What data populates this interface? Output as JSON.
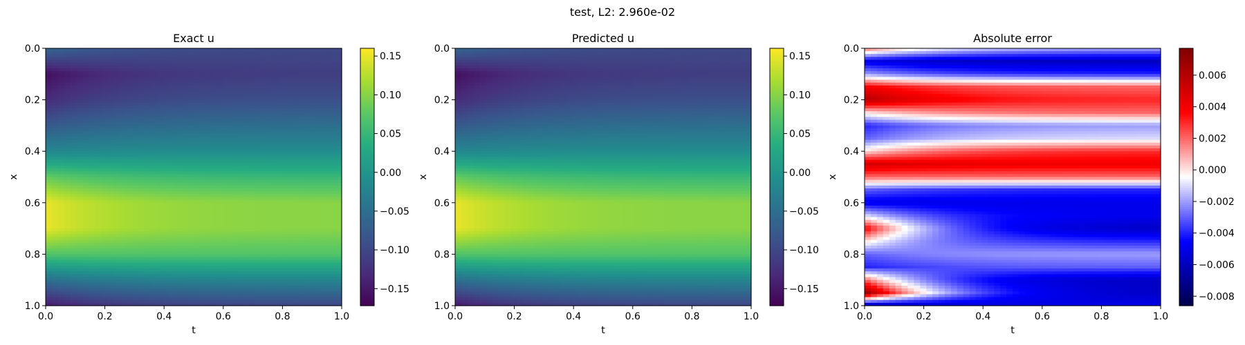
{
  "suptitle": "test, L2: 2.960e-02",
  "chart_data": [
    {
      "type": "heatmap",
      "title": "Exact u",
      "xlabel": "t",
      "ylabel": "x",
      "xlim": [
        0.0,
        1.0
      ],
      "ylim": [
        0.0,
        1.0
      ],
      "y_inverted": true,
      "x_ticks": [
        "0.0",
        "0.2",
        "0.4",
        "0.6",
        "0.8",
        "1.0"
      ],
      "y_ticks": [
        "0.0",
        "0.2",
        "0.4",
        "0.6",
        "0.8",
        "1.0"
      ],
      "colormap": "viridis",
      "colorbar": {
        "min": -0.172,
        "max": 0.16,
        "ticks": [
          0.15,
          0.1,
          0.05,
          0.0,
          -0.05,
          -0.1,
          -0.15
        ],
        "tick_labels": [
          "0.15",
          "0.10",
          "0.05",
          "0.00",
          "−0.05",
          "−0.10",
          "−0.15"
        ]
      },
      "field": {
        "x": [
          0.0,
          0.1,
          0.2,
          0.3,
          0.4,
          0.5,
          0.6,
          0.7,
          0.8,
          0.9,
          1.0
        ],
        "u_at_t0": [
          -0.06,
          -0.16,
          -0.13,
          -0.08,
          -0.02,
          0.08,
          0.15,
          0.15,
          0.07,
          -0.05,
          -0.15
        ],
        "u_at_t1": [
          -0.1,
          -0.11,
          -0.09,
          -0.05,
          -0.01,
          0.05,
          0.1,
          0.1,
          0.07,
          -0.02,
          -0.1
        ]
      }
    },
    {
      "type": "heatmap",
      "title": "Predicted u",
      "xlabel": "t",
      "ylabel": "x",
      "xlim": [
        0.0,
        1.0
      ],
      "ylim": [
        0.0,
        1.0
      ],
      "y_inverted": true,
      "x_ticks": [
        "0.0",
        "0.2",
        "0.4",
        "0.6",
        "0.8",
        "1.0"
      ],
      "y_ticks": [
        "0.0",
        "0.2",
        "0.4",
        "0.6",
        "0.8",
        "1.0"
      ],
      "colormap": "viridis",
      "colorbar": {
        "min": -0.172,
        "max": 0.16,
        "ticks": [
          0.15,
          0.1,
          0.05,
          0.0,
          -0.05,
          -0.1,
          -0.15
        ],
        "tick_labels": [
          "0.15",
          "0.10",
          "0.05",
          "0.00",
          "−0.05",
          "−0.10",
          "−0.15"
        ]
      },
      "field": {
        "x": [
          0.0,
          0.1,
          0.2,
          0.3,
          0.4,
          0.5,
          0.6,
          0.7,
          0.8,
          0.9,
          1.0
        ],
        "u_at_t0": [
          -0.06,
          -0.16,
          -0.13,
          -0.08,
          -0.02,
          0.08,
          0.15,
          0.15,
          0.07,
          -0.05,
          -0.15
        ],
        "u_at_t1": [
          -0.1,
          -0.11,
          -0.09,
          -0.05,
          -0.01,
          0.05,
          0.1,
          0.1,
          0.07,
          -0.02,
          -0.1
        ]
      }
    },
    {
      "type": "heatmap",
      "title": "Absolute error",
      "xlabel": "t",
      "ylabel": "x",
      "xlim": [
        0.0,
        1.0
      ],
      "ylim": [
        0.0,
        1.0
      ],
      "y_inverted": true,
      "x_ticks": [
        "0.0",
        "0.2",
        "0.4",
        "0.6",
        "0.8",
        "1.0"
      ],
      "y_ticks": [
        "0.0",
        "0.2",
        "0.4",
        "0.6",
        "0.8",
        "1.0"
      ],
      "colormap": "seismic",
      "colorbar": {
        "min": -0.0086,
        "max": 0.0077,
        "ticks": [
          0.006,
          0.004,
          0.002,
          0.0,
          -0.002,
          -0.004,
          -0.006,
          -0.008
        ],
        "tick_labels": [
          "0.006",
          "0.004",
          "0.002",
          "0.000",
          "−0.002",
          "−0.004",
          "−0.006",
          "−0.008"
        ]
      },
      "field": {
        "x": [
          0.0,
          0.05,
          0.1,
          0.15,
          0.2,
          0.25,
          0.3,
          0.35,
          0.4,
          0.45,
          0.5,
          0.55,
          0.6,
          0.65,
          0.7,
          0.75,
          0.8,
          0.85,
          0.9,
          0.95,
          1.0
        ],
        "err_at_t0": [
          0.002,
          -0.005,
          -0.002,
          0.004,
          0.006,
          0.0,
          -0.004,
          -0.003,
          0.0,
          0.005,
          0.002,
          -0.003,
          -0.005,
          -0.001,
          0.004,
          0.0,
          -0.003,
          -0.004,
          0.002,
          0.007,
          -0.007
        ],
        "err_at_t1": [
          -0.002,
          -0.006,
          -0.004,
          0.002,
          0.003,
          0.002,
          -0.002,
          -0.001,
          0.003,
          0.004,
          0.002,
          -0.004,
          -0.005,
          -0.005,
          -0.006,
          -0.004,
          -0.002,
          -0.003,
          -0.006,
          -0.006,
          -0.005
        ]
      }
    }
  ]
}
